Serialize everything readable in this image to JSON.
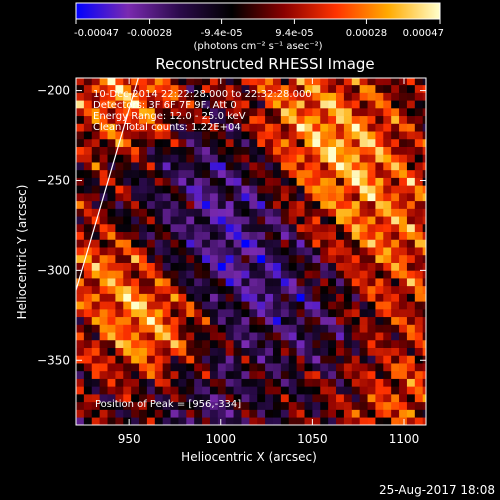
{
  "colorbar": {
    "tick_labels": [
      "-0.00047",
      "-0.00028",
      "-9.4e-05",
      "9.4e-05",
      "0.00028",
      "0.00047"
    ],
    "tick_values": [
      -0.00047,
      -0.00028,
      -9.4e-05,
      9.4e-05,
      0.00028,
      0.00047
    ],
    "range": [
      -0.00047,
      0.00047
    ],
    "units": "(photons cm⁻² s⁻¹ asec⁻²)",
    "colormap": [
      "#0000ff",
      "#7a2ab0",
      "#2a0a4a",
      "#000000",
      "#8a0000",
      "#ff3300",
      "#ffaa00",
      "#ffffcc"
    ]
  },
  "chart_data": {
    "type": "heatmap",
    "title": "Reconstructed RHESSI Image",
    "xlabel": "Heliocentric X (arcsec)",
    "ylabel": "Heliocentric Y (arcsec)",
    "xlim": [
      921,
      1112
    ],
    "ylim": [
      -386,
      -193
    ],
    "x_ticks": [
      950,
      1000,
      1050,
      1100
    ],
    "y_ticks": [
      -200,
      -250,
      -300,
      -350
    ],
    "annotations": [
      "10-Dec-2014 22:22:28.000 to 22:32:28.000",
      "Detectors: 3F 6F 7F 9F, Att 0",
      "Energy Range: 12.0 - 25.0 keV",
      "Clean    Total counts: 1.22E+04"
    ],
    "peak_label": "Position of Peak = [956,-334]",
    "peak": [
      956,
      -334
    ],
    "limb_line": [
      [
        921,
        -311
      ],
      [
        955,
        -193
      ]
    ],
    "grid": false
  },
  "footer": {
    "timestamp": "25-Aug-2017 18:08"
  }
}
